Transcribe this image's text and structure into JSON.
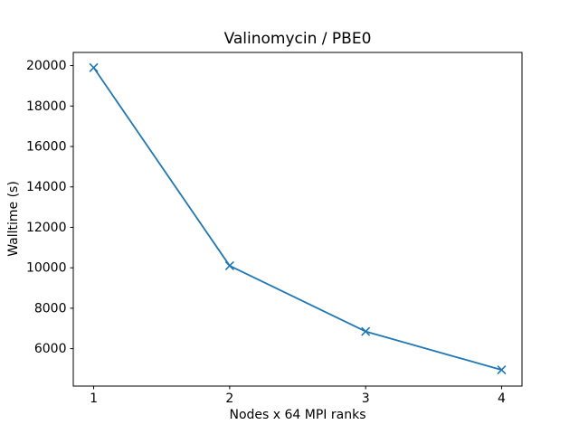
{
  "chart_data": {
    "type": "line",
    "title": "Valinomycin / PBE0",
    "xlabel": "Nodes x 64 MPI ranks",
    "ylabel": "Walltime (s)",
    "x": [
      1,
      2,
      3,
      4
    ],
    "y": [
      19900,
      10100,
      6850,
      4950
    ],
    "x_ticks": [
      1,
      2,
      3,
      4
    ],
    "y_ticks": [
      6000,
      8000,
      10000,
      12000,
      14000,
      16000,
      18000,
      20000
    ],
    "xlim": [
      0.85,
      4.15
    ],
    "ylim": [
      4150,
      20650
    ],
    "line_color": "#1f77b4",
    "marker": "x",
    "grid": false,
    "legend_position": "none",
    "background_color": "#ffffff",
    "axis_color": "#000000"
  }
}
